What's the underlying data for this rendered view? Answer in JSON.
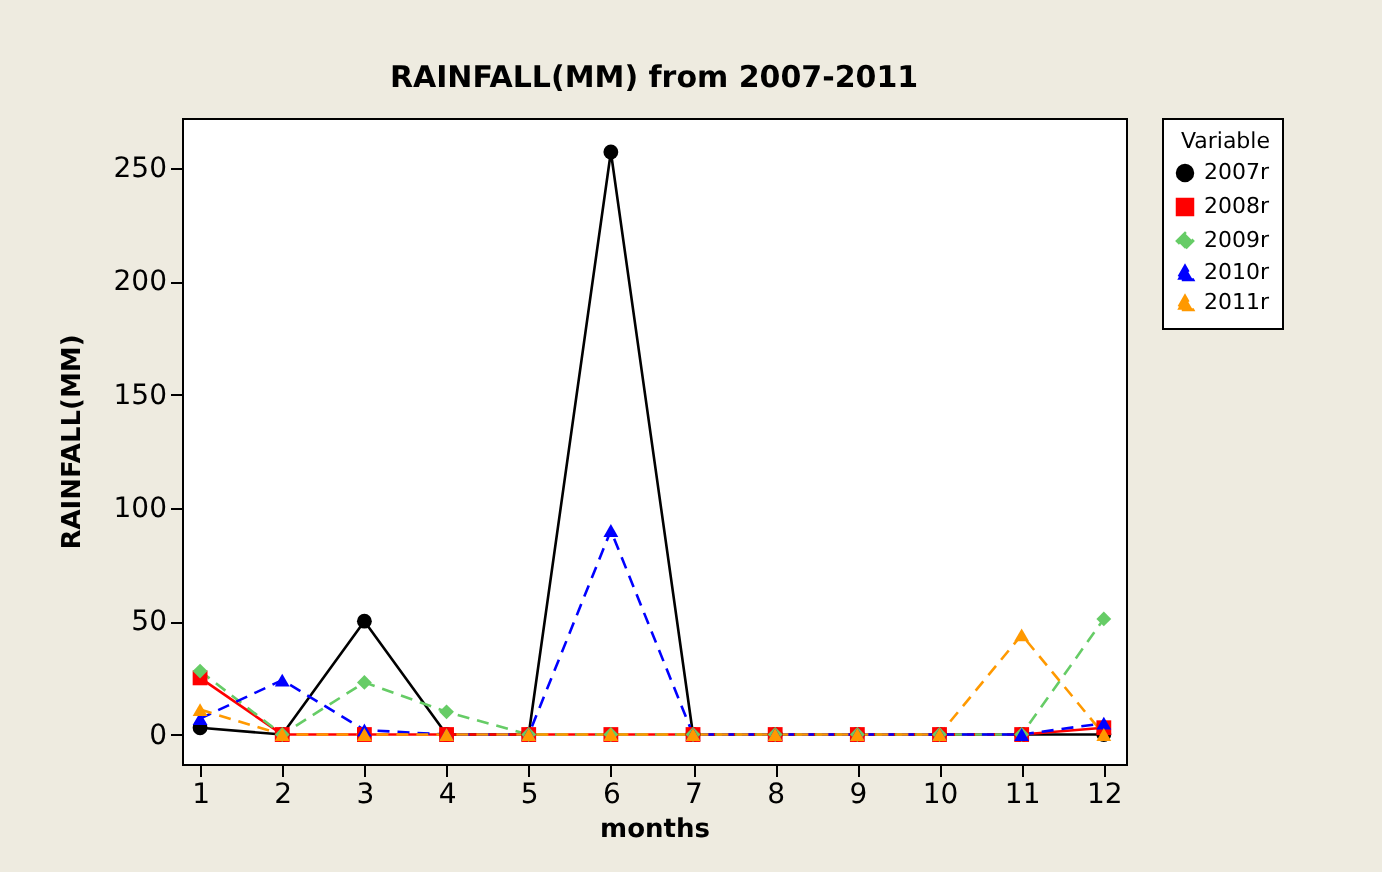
{
  "chart_data": {
    "type": "line",
    "title": "RAINFALL(MM) from 2007-2011",
    "xlabel": "months",
    "ylabel": "RAINFALL(MM)",
    "legend_title": "Variable",
    "x": [
      1,
      2,
      3,
      4,
      5,
      6,
      7,
      8,
      9,
      10,
      11,
      12
    ],
    "series": [
      {
        "name": "2007r",
        "color": "#000000",
        "marker": "circle",
        "line_style": "solid",
        "values": [
          3,
          0,
          50,
          0,
          0,
          257,
          0,
          0,
          0,
          0,
          0,
          0
        ]
      },
      {
        "name": "2008r",
        "color": "#ff0000",
        "marker": "square",
        "line_style": "solid",
        "values": [
          25,
          0,
          0,
          0,
          0,
          0,
          0,
          0,
          0,
          0,
          0,
          3
        ]
      },
      {
        "name": "2009r",
        "color": "#66cc66",
        "marker": "diamond",
        "line_style": "dashed",
        "values": [
          28,
          0,
          23,
          10,
          0,
          0,
          0,
          0,
          0,
          0,
          0,
          51
        ]
      },
      {
        "name": "2010r",
        "color": "#0000ff",
        "marker": "triangle",
        "line_style": "dashed",
        "values": [
          7,
          24,
          2,
          0,
          0,
          90,
          0,
          0,
          0,
          0,
          0,
          5
        ]
      },
      {
        "name": "2011r",
        "color": "#ff9900",
        "marker": "triangle",
        "line_style": "dashed",
        "values": [
          11,
          0,
          0,
          0,
          0,
          0,
          0,
          0,
          0,
          0,
          44,
          0
        ]
      }
    ],
    "xlim": [
      0.78,
      12.27
    ],
    "xticks": [
      1,
      2,
      3,
      4,
      5,
      6,
      7,
      8,
      9,
      10,
      11,
      12
    ],
    "ylim": [
      -13,
      272
    ],
    "yticks": [
      0,
      50,
      100,
      150,
      200,
      250
    ],
    "grid": false,
    "legend": "top right"
  }
}
